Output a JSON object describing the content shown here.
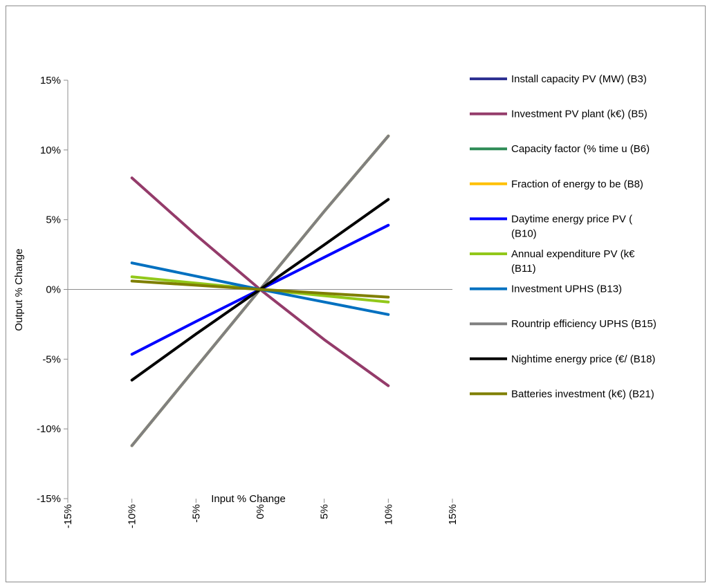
{
  "chart_data": {
    "type": "line",
    "title": "",
    "xlabel": "Input % Change",
    "ylabel": "Output % Change",
    "xlim": [
      -15,
      15
    ],
    "ylim": [
      -15,
      15
    ],
    "x_ticks": [
      -15,
      -10,
      -5,
      0,
      5,
      10,
      15
    ],
    "y_ticks": [
      -15,
      -10,
      -5,
      0,
      5,
      10,
      15
    ],
    "x_tick_labels": [
      "-15%",
      "-10%",
      "-5%",
      "0%",
      "5%",
      "10%",
      "15%"
    ],
    "y_tick_labels": [
      "-15%",
      "-10%",
      "-5%",
      "0%",
      "5%",
      "10%",
      "15%"
    ],
    "grid": false,
    "legend_position": "right",
    "x": [
      -10,
      -5,
      0,
      5,
      10
    ],
    "series": [
      {
        "name": "Install capacity PV (MW) (B3)",
        "name_lines": [
          "Install capacity PV (MW) (B3)"
        ],
        "color": "#2e3192",
        "values": [
          -11.2,
          -5.6,
          0,
          5.6,
          11.0
        ]
      },
      {
        "name": "Investment PV plant (k€) (B5)",
        "name_lines": [
          "Investment PV plant (k€) (B5)"
        ],
        "color": "#943b6a",
        "values": [
          8.0,
          3.9,
          0,
          -3.6,
          -6.9
        ]
      },
      {
        "name": "Capacity factor (% time u (B6)",
        "name_lines": [
          "Capacity factor (% time u (B6)"
        ],
        "color": "#2e8b57",
        "values": [
          -11.2,
          -5.6,
          0,
          5.6,
          11.0
        ]
      },
      {
        "name": "Fraction of energy to be  (B8)",
        "name_lines": [
          "Fraction of energy to be  (B8)"
        ],
        "color": "#ffc000",
        "values": [
          -11.2,
          -5.6,
          0,
          5.6,
          11.0
        ]
      },
      {
        "name": "Daytime energy price PV ( (B10)",
        "name_lines": [
          "Daytime energy price PV (",
          "(B10)"
        ],
        "color": "#0000ff",
        "values": [
          -4.65,
          -2.3,
          0,
          2.3,
          4.6
        ]
      },
      {
        "name": "Annual expenditure PV (k€ (B11)",
        "name_lines": [
          "Annual expenditure PV (k€",
          "(B11)"
        ],
        "color": "#92c81a",
        "values": [
          0.9,
          0.45,
          0,
          -0.45,
          -0.9
        ]
      },
      {
        "name": "Investment UPHS (B13)",
        "name_lines": [
          "Investment UPHS (B13)"
        ],
        "color": "#0070c0",
        "values": [
          1.9,
          0.95,
          0,
          -0.9,
          -1.8
        ]
      },
      {
        "name": "Rountrip efficiency UPHS (B15)",
        "name_lines": [
          "Rountrip efficiency UPHS (B15)"
        ],
        "color": "#808080",
        "values": [
          -11.2,
          -5.6,
          0,
          5.6,
          11.0
        ]
      },
      {
        "name": "Nightime energy price (€/ (B18)",
        "name_lines": [
          "Nightime energy price (€/ (B18)"
        ],
        "color": "#000000",
        "values": [
          -6.5,
          -3.2,
          0,
          3.2,
          6.45
        ]
      },
      {
        "name": "Batteries investment (k€) (B21)",
        "name_lines": [
          "Batteries investment (k€) (B21)"
        ],
        "color": "#7f7f00",
        "values": [
          0.6,
          0.3,
          0,
          -0.28,
          -0.55
        ]
      }
    ]
  }
}
